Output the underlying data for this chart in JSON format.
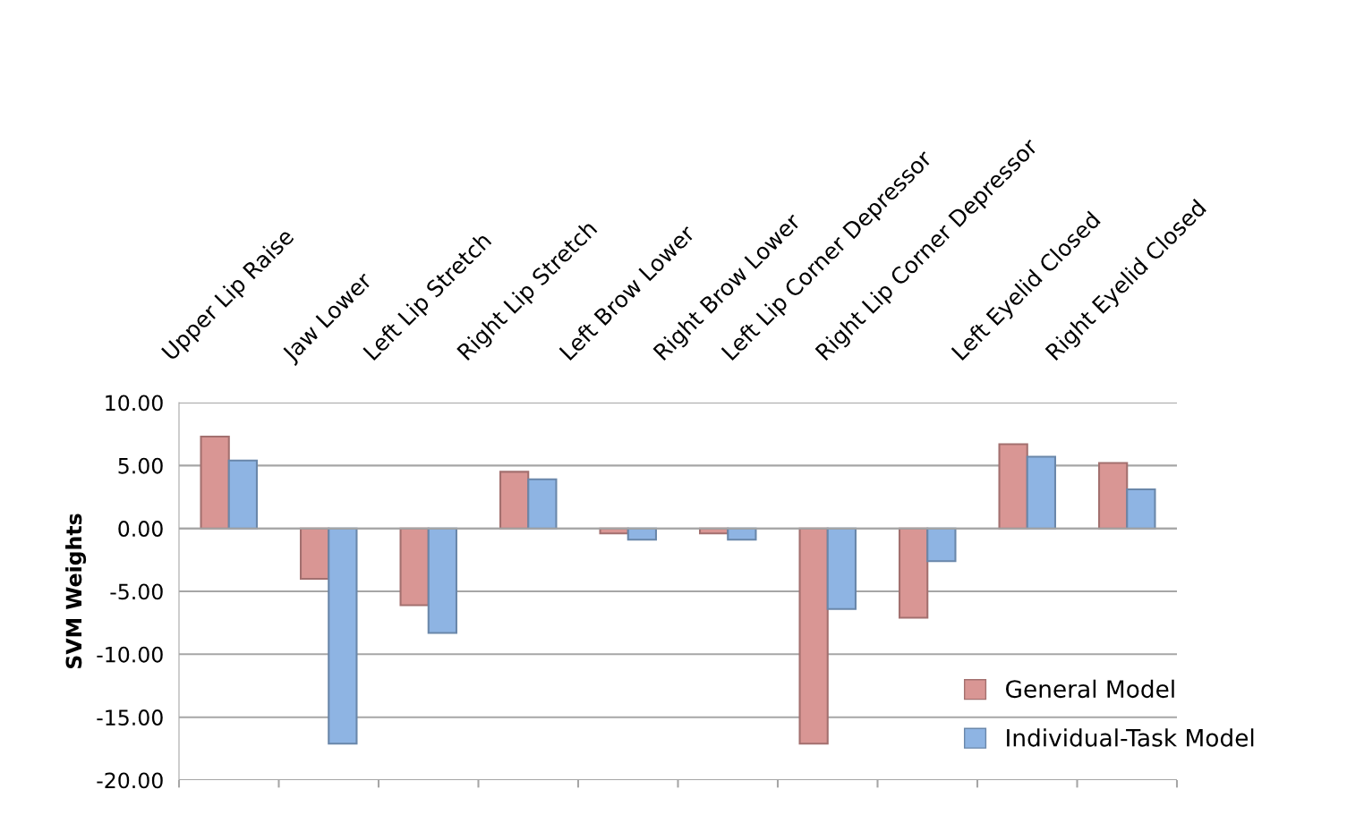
{
  "chart_data": {
    "type": "bar",
    "ylabel": "SVM Weights",
    "categories": [
      "Upper Lip Raise",
      "Jaw Lower",
      "Left Lip Stretch",
      "Right Lip Stretch",
      "Left Brow Lower",
      "Right Brow Lower",
      "Left Lip Corner Depressor",
      "Right Lip Corner Depressor",
      "Left Eyelid Closed",
      "Right Eyelid Closed"
    ],
    "series": [
      {
        "name": "General Model",
        "color": "#d99694",
        "values": [
          7.3,
          -4.0,
          -6.1,
          4.5,
          -0.4,
          -0.4,
          -17.1,
          -7.1,
          6.7,
          5.2
        ]
      },
      {
        "name": "Individual-Task Model",
        "color": "#8eb4e3",
        "values": [
          5.4,
          -17.1,
          -8.3,
          3.9,
          -0.9,
          -0.9,
          -6.4,
          -2.6,
          5.7,
          3.1
        ]
      }
    ],
    "ylim": [
      -20,
      10
    ],
    "yticks": [
      {
        "value": -20,
        "label": "-20.00"
      },
      {
        "value": -15,
        "label": "-15.00"
      },
      {
        "value": -10,
        "label": "-10.00"
      },
      {
        "value": -5,
        "label": "-5.00"
      },
      {
        "value": 0,
        "label": "0.00"
      },
      {
        "value": 5,
        "label": "5.00"
      },
      {
        "value": 10,
        "label": "10.00"
      }
    ],
    "grid": "y",
    "legend": "bottom right"
  }
}
